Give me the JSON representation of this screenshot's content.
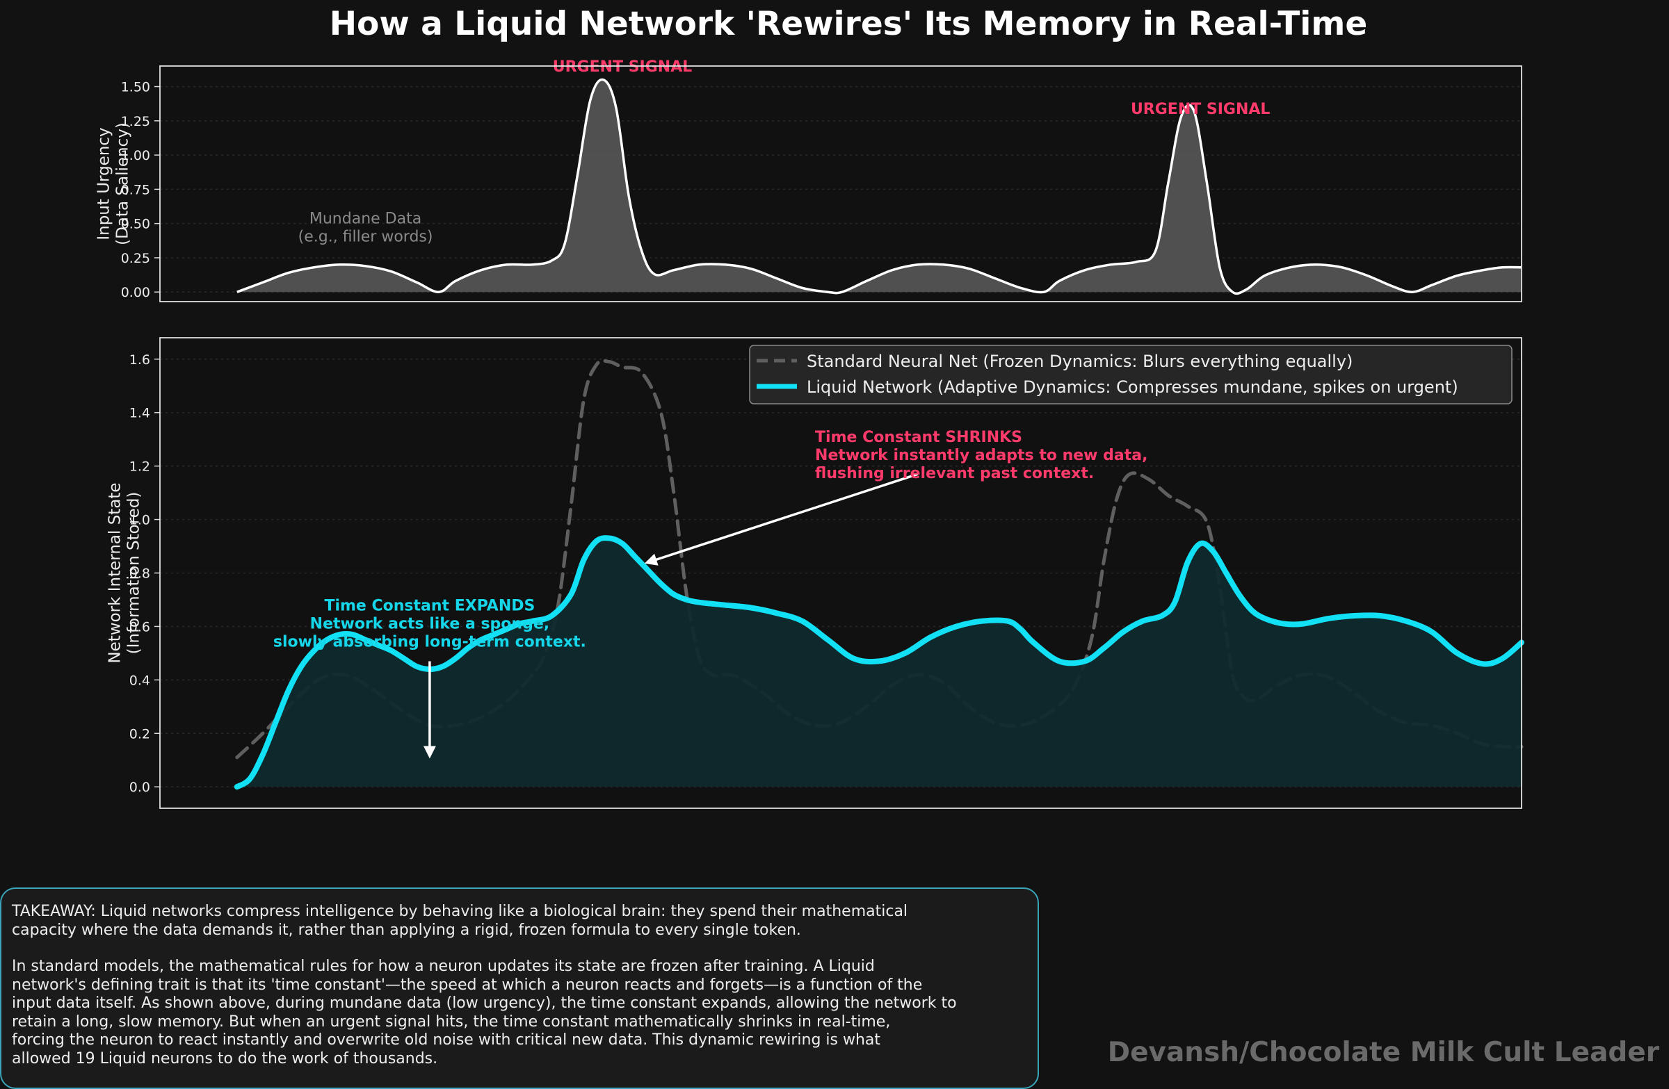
{
  "title": "How a Liquid Network 'Rewires' Its Memory in Real-Time",
  "colors": {
    "background": "#121212",
    "panel": "#111111",
    "input_line": "#ffffff",
    "input_fill": "#5c5c5c",
    "standard_line": "#5f5f5f",
    "liquid_line": "#12e0f4",
    "liquid_fill": "#0f2a2d",
    "urgent": "#ff3b6b",
    "expand": "#16d6ea",
    "mundane": "#8a8a8a"
  },
  "chart_data": [
    {
      "id": "input",
      "type": "area",
      "ylabel": "Input Urgency\n(Data Saliency)",
      "ylim": [
        -0.07,
        1.65
      ],
      "yticks": [
        "0.00",
        "0.25",
        "0.50",
        "0.75",
        "1.00",
        "1.25",
        "1.50"
      ],
      "xlim": [
        -6,
        100
      ],
      "grid": true,
      "series": [
        {
          "x": [
            0,
            2,
            4,
            6,
            8,
            10,
            12,
            14,
            15.7,
            17,
            19,
            21,
            23,
            24.5,
            25.5,
            26.5,
            27.5,
            28.5,
            29.5,
            30.5,
            31.5,
            32.5,
            34,
            36,
            38,
            40,
            42,
            44,
            46,
            47.1,
            49,
            51,
            53,
            55,
            57,
            59,
            61,
            62.8,
            64,
            66,
            68,
            70,
            71.5,
            72.5,
            73.5,
            74.5,
            75.5,
            76.5,
            77.5,
            78.6,
            80,
            82,
            84,
            86,
            88,
            90,
            91.5,
            93,
            95,
            97,
            98.5,
            100
          ],
          "y": [
            0,
            0.07,
            0.14,
            0.18,
            0.2,
            0.19,
            0.15,
            0.07,
            0,
            0.08,
            0.16,
            0.2,
            0.2,
            0.23,
            0.35,
            0.85,
            1.4,
            1.55,
            1.35,
            0.7,
            0.3,
            0.13,
            0.16,
            0.2,
            0.2,
            0.17,
            0.1,
            0.03,
            0,
            0,
            0.08,
            0.16,
            0.2,
            0.2,
            0.17,
            0.1,
            0.03,
            0,
            0.08,
            0.16,
            0.2,
            0.22,
            0.3,
            0.8,
            1.28,
            1.32,
            0.8,
            0.18,
            0,
            0.02,
            0.12,
            0.18,
            0.2,
            0.18,
            0.12,
            0.04,
            0,
            0.05,
            0.12,
            0.16,
            0.18,
            0.18
          ]
        }
      ],
      "annotations": [
        {
          "text": "URGENT SIGNAL",
          "x": 30,
          "y": 1.61,
          "color": "urgent",
          "weight": "bold"
        },
        {
          "text": "URGENT SIGNAL",
          "x": 75,
          "y": 1.3,
          "color": "urgent",
          "weight": "bold"
        },
        {
          "text": "Mundane Data\n(e.g., filler words)",
          "x": 10,
          "y": 0.5,
          "color": "mundane",
          "weight": "normal"
        }
      ]
    },
    {
      "id": "state",
      "type": "line",
      "ylabel": "Network Internal State\n(Information Stored)",
      "ylim": [
        -0.08,
        1.68
      ],
      "yticks": [
        "0.0",
        "0.2",
        "0.4",
        "0.6",
        "0.8",
        "1.0",
        "1.2",
        "1.4",
        "1.6"
      ],
      "xlim": [
        -6,
        100
      ],
      "grid": true,
      "legend": "upper-right",
      "series": [
        {
          "name": "Standard Neural Net (Frozen Dynamics: Blurs everything equally)",
          "style": "dashed",
          "x": [
            0,
            2,
            4,
            6,
            7.5,
            9,
            11,
            13,
            15,
            17,
            19,
            21,
            23,
            24,
            25,
            26,
            27,
            28,
            29,
            30,
            31.5,
            33,
            34,
            35,
            36,
            37,
            38,
            39,
            41,
            43,
            45,
            47,
            49,
            51,
            53,
            55,
            57,
            59,
            61,
            63,
            65,
            66.5,
            67.5,
            68.5,
            69.5,
            71,
            72.5,
            74,
            75.5,
            76.5,
            77.5,
            78.5,
            79.5,
            81,
            83,
            85,
            87,
            89,
            91,
            93,
            95,
            97,
            99,
            100
          ],
          "y": [
            0.11,
            0.2,
            0.3,
            0.39,
            0.42,
            0.41,
            0.35,
            0.28,
            0.23,
            0.23,
            0.26,
            0.32,
            0.42,
            0.5,
            0.68,
            1.05,
            1.45,
            1.58,
            1.59,
            1.57,
            1.55,
            1.4,
            1.1,
            0.72,
            0.48,
            0.42,
            0.42,
            0.41,
            0.35,
            0.27,
            0.23,
            0.24,
            0.3,
            0.38,
            0.42,
            0.39,
            0.3,
            0.24,
            0.23,
            0.27,
            0.36,
            0.55,
            0.85,
            1.08,
            1.17,
            1.15,
            1.09,
            1.05,
            0.99,
            0.75,
            0.42,
            0.33,
            0.33,
            0.38,
            0.42,
            0.41,
            0.35,
            0.28,
            0.24,
            0.23,
            0.2,
            0.16,
            0.15,
            0.15
          ]
        },
        {
          "name": "Liquid Network (Adaptive Dynamics: Compresses mundane, spikes on urgent)",
          "style": "solid",
          "x": [
            0,
            1,
            2,
            3,
            4,
            5,
            6,
            7,
            8,
            9,
            10,
            11,
            12,
            13,
            14,
            15,
            16,
            17,
            18,
            19,
            20,
            21,
            22,
            23,
            24.5,
            26,
            27,
            28,
            29,
            30,
            31,
            32,
            33,
            34,
            35,
            36,
            38,
            40,
            42,
            44,
            46,
            48,
            50,
            52,
            54,
            56,
            58,
            60,
            61,
            62,
            64,
            66,
            67.5,
            69,
            70.5,
            72,
            73,
            74,
            75,
            76,
            77,
            78,
            79,
            80,
            81.5,
            83,
            85,
            87,
            89,
            91,
            93,
            95,
            97,
            98.5,
            100
          ],
          "y": [
            0,
            0.03,
            0.12,
            0.24,
            0.36,
            0.45,
            0.51,
            0.55,
            0.57,
            0.57,
            0.55,
            0.53,
            0.51,
            0.48,
            0.45,
            0.44,
            0.45,
            0.48,
            0.52,
            0.55,
            0.57,
            0.59,
            0.61,
            0.62,
            0.64,
            0.72,
            0.85,
            0.92,
            0.93,
            0.91,
            0.86,
            0.81,
            0.76,
            0.72,
            0.7,
            0.69,
            0.68,
            0.67,
            0.65,
            0.62,
            0.55,
            0.48,
            0.47,
            0.5,
            0.56,
            0.6,
            0.62,
            0.62,
            0.59,
            0.54,
            0.47,
            0.47,
            0.52,
            0.58,
            0.62,
            0.64,
            0.69,
            0.84,
            0.91,
            0.88,
            0.8,
            0.72,
            0.66,
            0.63,
            0.61,
            0.61,
            0.63,
            0.64,
            0.64,
            0.62,
            0.58,
            0.5,
            0.46,
            0.48,
            0.54
          ]
        }
      ],
      "annotations": [
        {
          "text": "Time Constant SHRINKS\nNetwork instantly adapts to new data,\nflushing irrelevant past context.",
          "x": 45,
          "y": 1.29,
          "color": "urgent",
          "weight": "bold",
          "arrow_to": [
            32,
            0.84
          ],
          "arrow_from": [
            53,
            1.17
          ]
        },
        {
          "text": "Time Constant EXPANDS\nNetwork acts like a sponge,\nslowly absorbing long-term context.",
          "x": 15,
          "y": 0.66,
          "color": "expand",
          "weight": "bold",
          "arrow_to": [
            15,
            0.12
          ],
          "arrow_from": [
            15,
            0.47
          ]
        }
      ]
    }
  ],
  "takeaway": {
    "paragraph_1": "TAKEAWAY: Liquid networks compress intelligence by behaving like a biological brain: they spend their mathematical\ncapacity where the data demands it, rather than applying a rigid, frozen formula to every single token.",
    "paragraph_2": "In standard models, the mathematical rules for how a neuron updates its state are frozen after training. A Liquid\nnetwork's defining trait is that its 'time constant'—the speed at which a neuron reacts and forgets—is a function of the\ninput data itself. As shown above, during mundane data (low urgency), the time constant expands, allowing the network to\nretain a long, slow memory. But when an urgent signal hits, the time constant mathematically shrinks in real-time,\nforcing the neuron to react instantly and overwrite old noise with critical new data. This dynamic rewiring is what\nallowed 19 Liquid neurons to do the work of thousands."
  },
  "watermark": "Devansh/Chocolate Milk Cult Leader"
}
